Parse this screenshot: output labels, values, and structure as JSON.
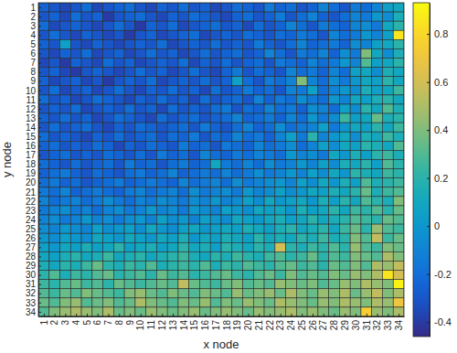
{
  "chart_data": {
    "type": "heatmap",
    "x_label": "x node",
    "y_label": "y node",
    "x": [
      1,
      2,
      3,
      4,
      5,
      6,
      7,
      8,
      9,
      10,
      11,
      12,
      13,
      14,
      15,
      16,
      17,
      18,
      19,
      20,
      21,
      22,
      23,
      24,
      25,
      26,
      27,
      28,
      29,
      30,
      31,
      32,
      33,
      34
    ],
    "y": [
      1,
      2,
      3,
      4,
      5,
      6,
      7,
      8,
      9,
      10,
      11,
      12,
      13,
      14,
      15,
      16,
      17,
      18,
      19,
      20,
      21,
      22,
      23,
      24,
      25,
      26,
      27,
      28,
      29,
      30,
      31,
      32,
      33,
      34
    ],
    "xlim": [
      0.5,
      34.5
    ],
    "ylim": [
      0.5,
      34.5
    ],
    "xticks": [
      1,
      2,
      3,
      4,
      5,
      6,
      7,
      8,
      9,
      10,
      11,
      12,
      13,
      14,
      15,
      16,
      17,
      18,
      19,
      20,
      21,
      22,
      23,
      24,
      25,
      26,
      27,
      28,
      29,
      30,
      31,
      32,
      33,
      34
    ],
    "yticks": [
      1,
      2,
      3,
      4,
      5,
      6,
      7,
      8,
      9,
      10,
      11,
      12,
      13,
      14,
      15,
      16,
      17,
      18,
      19,
      20,
      21,
      22,
      23,
      24,
      25,
      26,
      27,
      28,
      29,
      30,
      31,
      32,
      33,
      34
    ],
    "cells": [
      [
        -0.25,
        -0.3,
        -0.35,
        -0.3,
        -0.2,
        -0.35,
        -0.3,
        -0.25,
        -0.2,
        -0.3,
        -0.35,
        -0.25,
        -0.3,
        -0.2,
        -0.3,
        -0.25,
        -0.35,
        -0.3,
        -0.2,
        -0.25,
        -0.3,
        -0.15,
        -0.25,
        -0.2,
        -0.3,
        -0.25,
        -0.1,
        -0.2,
        -0.3,
        -0.15,
        -0.2,
        -0.1,
        0.05,
        0.1
      ],
      [
        -0.3,
        -0.25,
        -0.35,
        -0.2,
        -0.3,
        -0.25,
        -0.4,
        -0.3,
        -0.25,
        -0.2,
        -0.3,
        -0.35,
        -0.25,
        -0.3,
        -0.2,
        -0.25,
        -0.3,
        -0.35,
        -0.25,
        -0.2,
        -0.3,
        -0.25,
        -0.15,
        -0.3,
        -0.2,
        -0.1,
        -0.25,
        -0.3,
        -0.2,
        -0.1,
        -0.15,
        0,
        -0.05,
        0.15
      ],
      [
        -0.2,
        -0.35,
        -0.3,
        -0.25,
        -0.3,
        -0.35,
        -0.3,
        -0.2,
        -0.3,
        -0.4,
        -0.25,
        -0.3,
        -0.2,
        -0.35,
        -0.3,
        -0.25,
        -0.2,
        -0.3,
        -0.25,
        -0.35,
        -0.2,
        -0.3,
        -0.25,
        -0.1,
        -0.2,
        -0.3,
        -0.15,
        -0.2,
        -0.25,
        -0.1,
        -0.05,
        -0.15,
        0.1,
        0.2
      ],
      [
        -0.3,
        -0.2,
        -0.3,
        -0.35,
        -0.25,
        -0.3,
        -0.35,
        -0.3,
        -0.4,
        -0.3,
        -0.25,
        -0.35,
        -0.3,
        -0.25,
        -0.2,
        -0.35,
        -0.3,
        -0.25,
        -0.3,
        -0.2,
        -0.25,
        -0.3,
        -0.2,
        -0.25,
        -0.15,
        -0.2,
        -0.3,
        -0.1,
        -0.2,
        -0.15,
        0,
        -0.1,
        0.05,
        0.85
      ],
      [
        -0.25,
        -0.3,
        0.05,
        -0.3,
        -0.35,
        -0.25,
        -0.3,
        -0.35,
        -0.3,
        -0.25,
        -0.3,
        -0.2,
        -0.35,
        -0.3,
        -0.25,
        -0.3,
        -0.2,
        -0.3,
        -0.25,
        -0.3,
        -0.15,
        -0.25,
        -0.3,
        -0.2,
        -0.1,
        -0.25,
        -0.2,
        -0.15,
        -0.25,
        -0.05,
        -0.1,
        0.05,
        0.1,
        0.2
      ],
      [
        -0.3,
        -0.35,
        -0.25,
        -0.3,
        -0.2,
        -0.35,
        -0.3,
        -0.25,
        -0.35,
        -0.3,
        -0.2,
        -0.3,
        -0.25,
        -0.35,
        -0.3,
        -0.2,
        -0.3,
        -0.25,
        -0.2,
        -0.3,
        -0.25,
        -0.1,
        -0.2,
        -0.3,
        -0.15,
        -0.2,
        -0.1,
        -0.25,
        -0.05,
        -0.15,
        0.4,
        0.1,
        -0.05,
        0.15
      ],
      [
        -0.35,
        -0.3,
        -0.4,
        -0.25,
        -0.3,
        -0.35,
        -0.2,
        -0.3,
        -0.25,
        -0.35,
        -0.3,
        -0.25,
        -0.3,
        -0.2,
        -0.35,
        -0.25,
        -0.3,
        -0.2,
        -0.3,
        -0.25,
        -0.2,
        -0.3,
        -0.15,
        -0.2,
        -0.25,
        -0.1,
        -0.2,
        -0.15,
        0,
        -0.1,
        0.3,
        0.05,
        0.1,
        0.2
      ],
      [
        -0.3,
        -0.25,
        -0.35,
        -0.4,
        -0.3,
        -0.25,
        -0.3,
        -0.35,
        -0.3,
        -0.2,
        -0.3,
        -0.25,
        -0.35,
        -0.3,
        -0.2,
        -0.3,
        -0.35,
        -0.25,
        -0.15,
        -0.3,
        -0.2,
        -0.25,
        -0.3,
        -0.1,
        -0.2,
        -0.15,
        -0.25,
        -0.1,
        -0.2,
        0.05,
        0.1,
        -0.05,
        0.15,
        0.1
      ],
      [
        -0.25,
        -0.35,
        -0.3,
        -0.25,
        -0.35,
        -0.3,
        -0.4,
        -0.3,
        -0.25,
        -0.3,
        -0.2,
        -0.35,
        -0.3,
        -0.25,
        -0.3,
        -0.2,
        -0.3,
        -0.25,
        0.05,
        -0.2,
        -0.3,
        -0.15,
        -0.2,
        -0.1,
        0.4,
        -0.1,
        -0.2,
        -0.05,
        -0.15,
        0,
        0.1,
        0.05,
        0.2,
        0.1
      ],
      [
        -0.3,
        -0.2,
        -0.35,
        -0.3,
        -0.25,
        -0.35,
        -0.3,
        -0.2,
        -0.3,
        -0.35,
        -0.25,
        -0.3,
        -0.2,
        -0.3,
        -0.25,
        -0.35,
        -0.2,
        -0.3,
        -0.25,
        -0.15,
        -0.25,
        -0.2,
        -0.3,
        -0.1,
        -0.15,
        0.05,
        -0.2,
        -0.1,
        0,
        -0.05,
        0.15,
        0.05,
        0.1,
        0.25
      ],
      [
        -0.2,
        -0.3,
        -0.25,
        -0.35,
        -0.3,
        -0.2,
        -0.25,
        -0.3,
        -0.35,
        -0.25,
        -0.3,
        -0.2,
        -0.3,
        -0.25,
        -0.35,
        -0.2,
        -0.3,
        -0.25,
        -0.2,
        -0.3,
        -0.1,
        -0.25,
        -0.15,
        -0.2,
        -0.05,
        -0.15,
        -0.2,
        0,
        -0.1,
        0.1,
        0.05,
        0.15,
        0.2,
        0.1
      ],
      [
        -0.3,
        -0.25,
        -0.3,
        -0.2,
        -0.35,
        -0.3,
        -0.25,
        -0.3,
        -0.2,
        -0.3,
        -0.25,
        -0.35,
        -0.2,
        -0.3,
        -0.25,
        -0.3,
        -0.2,
        -0.15,
        -0.3,
        -0.2,
        -0.25,
        -0.1,
        -0.2,
        -0.15,
        -0.25,
        -0.05,
        -0.1,
        -0.2,
        0.05,
        -0.05,
        0.2,
        0.1,
        0.3,
        0.15
      ],
      [
        -0.25,
        -0.3,
        -0.2,
        -0.3,
        -0.25,
        -0.35,
        -0.3,
        -0.2,
        -0.25,
        -0.3,
        -0.35,
        -0.2,
        -0.3,
        -0.25,
        -0.2,
        -0.3,
        -0.25,
        -0.2,
        -0.1,
        -0.25,
        -0.2,
        -0.15,
        -0.25,
        -0.1,
        -0.2,
        0,
        -0.15,
        -0.05,
        0.25,
        0.05,
        0.1,
        0.35,
        0.15,
        0.2
      ],
      [
        -0.3,
        -0.2,
        -0.3,
        -0.25,
        -0.2,
        -0.3,
        -0.35,
        -0.25,
        -0.3,
        -0.2,
        -0.25,
        -0.3,
        -0.25,
        -0.2,
        -0.3,
        -0.15,
        -0.25,
        -0.3,
        -0.2,
        -0.1,
        -0.25,
        -0.2,
        -0.05,
        -0.2,
        -0.15,
        -0.1,
        0.05,
        -0.15,
        0,
        0.1,
        0.05,
        0.2,
        0.1,
        0.25
      ],
      [
        -0.2,
        -0.3,
        -0.25,
        -0.3,
        -0.35,
        -0.25,
        -0.3,
        -0.2,
        -0.3,
        -0.25,
        -0.2,
        -0.3,
        -0.2,
        -0.25,
        -0.15,
        -0.3,
        -0.2,
        -0.25,
        -0.1,
        -0.2,
        -0.15,
        -0.25,
        -0.1,
        0.05,
        -0.15,
        0.2,
        -0.1,
        0,
        0.1,
        -0.05,
        0.15,
        0.1,
        0.25,
        0.15
      ],
      [
        -0.25,
        -0.2,
        -0.3,
        -0.25,
        -0.3,
        -0.2,
        -0.25,
        -0.35,
        -0.25,
        -0.3,
        -0.2,
        -0.25,
        -0.3,
        -0.15,
        -0.25,
        -0.2,
        -0.3,
        -0.15,
        -0.2,
        -0.25,
        -0.1,
        -0.2,
        -0.15,
        -0.05,
        -0.2,
        -0.1,
        0.05,
        -0.05,
        0.1,
        0.05,
        0.2,
        0.15,
        0.1,
        0.3
      ],
      [
        -0.3,
        -0.25,
        -0.2,
        -0.3,
        -0.25,
        -0.3,
        -0.2,
        -0.25,
        -0.3,
        -0.2,
        -0.3,
        -0.15,
        -0.25,
        -0.2,
        -0.3,
        -0.1,
        -0.2,
        -0.25,
        -0.15,
        -0.2,
        -0.1,
        -0.15,
        -0.2,
        0,
        -0.1,
        -0.05,
        -0.15,
        0.1,
        0,
        0.15,
        0.05,
        0.2,
        0.25,
        0.15
      ],
      [
        -0.2,
        -0.25,
        -0.3,
        -0.2,
        -0.3,
        -0.25,
        -0.2,
        -0.3,
        -0.15,
        -0.25,
        -0.2,
        -0.3,
        -0.2,
        -0.15,
        -0.25,
        -0.2,
        0.1,
        -0.15,
        -0.2,
        -0.1,
        -0.2,
        -0.05,
        -0.15,
        -0.1,
        0,
        -0.1,
        0.05,
        -0.05,
        0.15,
        0.1,
        0.2,
        0.05,
        0.3,
        0.2
      ],
      [
        -0.25,
        -0.2,
        -0.15,
        -0.25,
        -0.3,
        -0.2,
        -0.25,
        -0.3,
        -0.2,
        -0.15,
        -0.25,
        -0.2,
        -0.1,
        -0.25,
        -0.2,
        -0.15,
        -0.2,
        -0.1,
        -0.2,
        -0.15,
        -0.05,
        -0.15,
        -0.1,
        0,
        -0.1,
        0.05,
        -0.05,
        0.1,
        0,
        0.2,
        0.15,
        0.1,
        0.25,
        0.2
      ],
      [
        -0.2,
        -0.15,
        -0.25,
        -0.2,
        -0.3,
        -0.25,
        -0.2,
        -0.15,
        -0.25,
        -0.2,
        -0.15,
        -0.2,
        -0.25,
        -0.1,
        -0.2,
        -0.15,
        -0.1,
        -0.2,
        -0.05,
        -0.15,
        -0.1,
        -0.05,
        0,
        -0.1,
        0.05,
        -0.05,
        0.1,
        0,
        0.15,
        0.05,
        0.3,
        0.15,
        0.2,
        0.25
      ],
      [
        -0.15,
        -0.2,
        -0.1,
        -0.25,
        -0.2,
        -0.15,
        -0.2,
        -0.25,
        -0.15,
        -0.1,
        -0.2,
        -0.15,
        -0.1,
        -0.2,
        -0.05,
        -0.15,
        -0.1,
        -0.05,
        -0.15,
        0,
        -0.1,
        -0.05,
        0.05,
        -0.05,
        0,
        0.1,
        0.05,
        0.15,
        0.1,
        0.2,
        0.35,
        0.15,
        0.25,
        0.3
      ],
      [
        -0.1,
        -0.2,
        -0.15,
        -0.1,
        -0.2,
        -0.15,
        -0.05,
        -0.15,
        -0.2,
        -0.1,
        -0.15,
        -0.05,
        -0.1,
        -0.15,
        -0.05,
        -0.1,
        0,
        -0.1,
        -0.05,
        0.05,
        -0.05,
        0.1,
        0,
        0.05,
        0.1,
        0,
        0.15,
        0.05,
        0.2,
        0.1,
        0.3,
        0.2,
        0.15,
        0.4
      ],
      [
        -0.15,
        -0.1,
        -0.05,
        -0.15,
        -0.1,
        -0.2,
        -0.1,
        -0.05,
        -0.15,
        -0.1,
        0,
        -0.1,
        -0.05,
        -0.15,
        0,
        -0.05,
        -0.1,
        0.05,
        0,
        -0.05,
        0.1,
        0.05,
        0.1,
        0,
        0.15,
        0.05,
        0.1,
        0.2,
        0.1,
        0.25,
        0.2,
        0.3,
        0.2,
        0.35
      ],
      [
        -0.1,
        -0.05,
        -0.15,
        -0.1,
        0,
        -0.1,
        -0.05,
        -0.15,
        -0.05,
        0,
        -0.1,
        0.05,
        -0.05,
        0,
        -0.1,
        0.05,
        0,
        -0.05,
        0.1,
        0.05,
        0,
        0.1,
        0.15,
        0.05,
        0.1,
        0.2,
        0.1,
        0.15,
        0.2,
        0.3,
        0.25,
        0.2,
        0.35,
        0.3
      ],
      [
        -0.05,
        -0.1,
        0,
        -0.05,
        -0.1,
        0.05,
        -0.05,
        0,
        0.05,
        -0.05,
        0.1,
        0,
        -0.05,
        0.05,
        0.1,
        0,
        0.05,
        0.1,
        0.05,
        0.15,
        0.1,
        0.05,
        0.15,
        0.2,
        0.1,
        0.15,
        0.2,
        0.1,
        0.25,
        0.35,
        0.2,
        0.45,
        0.3,
        0.25
      ],
      [
        0,
        -0.05,
        0.05,
        0,
        -0.05,
        0.1,
        0.05,
        0,
        0.1,
        0.05,
        0,
        0.1,
        0.05,
        0.15,
        0,
        0.1,
        0.05,
        0.15,
        0.1,
        0.05,
        0.2,
        0.1,
        0.15,
        0.1,
        0.2,
        0.15,
        0.25,
        0.15,
        0.2,
        0.4,
        0.3,
        0.55,
        0.25,
        0.35
      ],
      [
        0.05,
        0,
        0.1,
        0.05,
        0.15,
        0.05,
        0.1,
        0.2,
        0.05,
        0.1,
        0.15,
        0.05,
        0.1,
        0.2,
        0.1,
        0.15,
        0.05,
        0.2,
        0.15,
        0.1,
        0.2,
        0.15,
        0.6,
        0.2,
        0.15,
        0.25,
        0.2,
        0.3,
        0.2,
        0.45,
        0.3,
        0.25,
        0.4,
        0.35
      ],
      [
        0.1,
        0.05,
        0.15,
        0.2,
        0.1,
        0.15,
        0.25,
        0.1,
        0.15,
        0.2,
        0.1,
        0.15,
        0.2,
        0.25,
        0.15,
        0.1,
        0.2,
        0.15,
        0.25,
        0.2,
        0.15,
        0.25,
        0.3,
        0.2,
        0.25,
        0.35,
        0.2,
        0.3,
        0.25,
        0.4,
        0.35,
        0.3,
        0.5,
        0.4
      ],
      [
        0.15,
        0.1,
        0.2,
        0.15,
        0.25,
        0.35,
        0.2,
        0.15,
        0.25,
        0.2,
        0.3,
        0.15,
        0.2,
        0.25,
        0.2,
        0.3,
        0.15,
        0.25,
        0.2,
        0.3,
        0.25,
        0.2,
        0.3,
        0.35,
        0.25,
        0.3,
        0.2,
        0.35,
        0.3,
        0.4,
        0.3,
        0.5,
        0.45,
        0.55
      ],
      [
        0.2,
        0.3,
        0.15,
        0.25,
        0.2,
        0.3,
        0.35,
        0.2,
        0.25,
        0.3,
        0.2,
        0.35,
        0.25,
        0.3,
        0.2,
        0.25,
        0.3,
        0.35,
        0.25,
        0.2,
        0.3,
        0.35,
        0.25,
        0.4,
        0.3,
        0.35,
        0.3,
        0.4,
        0.35,
        0.45,
        0.4,
        0.5,
        0.85,
        0.6
      ],
      [
        0.25,
        0.2,
        0.3,
        0.35,
        0.25,
        0.3,
        0.2,
        0.35,
        0.3,
        0.25,
        0.3,
        0.35,
        0.3,
        0.55,
        0.35,
        0.3,
        0.25,
        0.35,
        0.4,
        0.3,
        0.35,
        0.3,
        0.45,
        0.4,
        0.35,
        0.4,
        0.3,
        0.35,
        0.45,
        0.4,
        0.5,
        0.45,
        0.4,
        0.9
      ],
      [
        0.3,
        0.25,
        0.35,
        0.3,
        0.4,
        0.35,
        0.3,
        0.25,
        0.4,
        0.45,
        0.35,
        0.3,
        0.4,
        0.35,
        0.3,
        0.4,
        0.35,
        0.3,
        0.45,
        0.35,
        0.4,
        0.45,
        0.35,
        0.5,
        0.4,
        0.35,
        0.45,
        0.4,
        0.5,
        0.35,
        0.45,
        0.55,
        0.4,
        0.5
      ],
      [
        0.35,
        0.3,
        0.4,
        0.45,
        0.3,
        0.35,
        0.4,
        0.3,
        0.35,
        0.5,
        0.4,
        0.35,
        0.3,
        0.4,
        0.35,
        0.45,
        0.3,
        0.4,
        0.35,
        0.45,
        0.4,
        0.35,
        0.5,
        0.45,
        0.4,
        0.35,
        0.45,
        0.4,
        0.5,
        0.45,
        0.4,
        0.5,
        0.45,
        0.7
      ],
      [
        0.3,
        0.4,
        0.45,
        0.5,
        0.45,
        0.4,
        0.5,
        0.35,
        0.4,
        0.35,
        0.45,
        0.4,
        0.35,
        0.4,
        0.45,
        0.35,
        0.4,
        0.45,
        0.4,
        0.35,
        0.45,
        0.4,
        0.45,
        0.5,
        0.4,
        0.45,
        0.4,
        0.35,
        0.45,
        0.4,
        0.75,
        0.45,
        0.4,
        0.5
      ]
    ],
    "colorbar": {
      "range": [
        -0.46,
        0.93
      ],
      "ticks": [
        -0.4,
        -0.2,
        0,
        0.2,
        0.4,
        0.6,
        0.8
      ]
    }
  }
}
